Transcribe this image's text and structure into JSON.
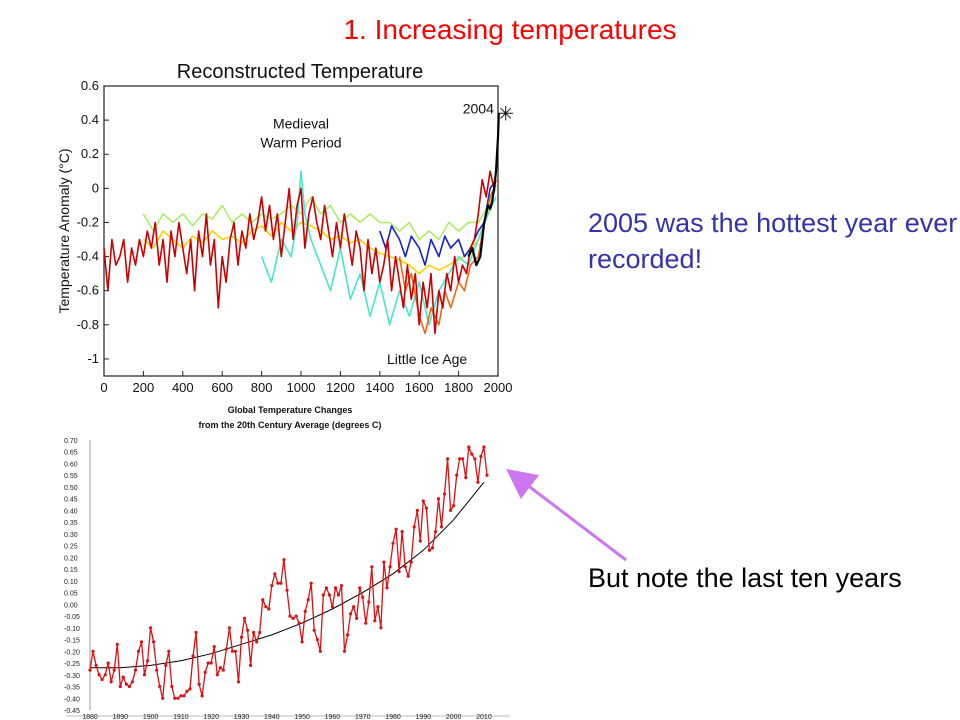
{
  "slide_title": "1. Increasing temperatures",
  "note_hottest": "2005 was the hottest year ever recorded!",
  "note_last_years": "But note the last ten years",
  "colors": {
    "title": "#ff0000",
    "note_hottest": "#3333aa",
    "arrow": "#cc77ee",
    "chart2_line": "#dd1111"
  },
  "chart_data": [
    {
      "type": "line",
      "title": "Reconstructed Temperature",
      "ylabel": "Temperature Anomaly (°C)",
      "xlabel": "",
      "xlim": [
        0,
        2000
      ],
      "ylim": [
        -1.1,
        0.6
      ],
      "x_ticks": [
        0,
        200,
        400,
        600,
        800,
        1000,
        1200,
        1400,
        1600,
        1800,
        2000
      ],
      "y_ticks": [
        0.6,
        0.4,
        0.2,
        0,
        -0.2,
        -0.4,
        -0.6,
        -0.8,
        -1
      ],
      "annotations": [
        {
          "text": "Medieval",
          "x": 1000,
          "y": 0.35
        },
        {
          "text": "Warm Period",
          "x": 1000,
          "y": 0.24
        },
        {
          "text": "Little Ice Age",
          "x": 1640,
          "y": -1.03
        },
        {
          "text": "2004",
          "x": 1900,
          "y": 0.44
        }
      ],
      "marker": {
        "label": "2004",
        "x": 2004,
        "y": 0.44
      },
      "series": [
        {
          "color": "#aaee66",
          "x": [
            200,
            250,
            300,
            350,
            400,
            450,
            500,
            550,
            600,
            650,
            700,
            750,
            800,
            850,
            900,
            950,
            1000,
            1050,
            1100,
            1150,
            1200,
            1250,
            1300,
            1350,
            1400,
            1450,
            1500,
            1550,
            1600,
            1650,
            1700,
            1750,
            1800,
            1850,
            1900,
            1950,
            1990
          ],
          "y": [
            -0.15,
            -0.25,
            -0.15,
            -0.2,
            -0.15,
            -0.22,
            -0.15,
            -0.18,
            -0.1,
            -0.2,
            -0.15,
            -0.2,
            -0.15,
            -0.18,
            -0.15,
            -0.1,
            -0.15,
            -0.05,
            -0.15,
            -0.1,
            -0.2,
            -0.15,
            -0.2,
            -0.15,
            -0.2,
            -0.2,
            -0.25,
            -0.2,
            -0.3,
            -0.25,
            -0.3,
            -0.2,
            -0.25,
            -0.2,
            -0.2,
            -0.1,
            0.0
          ]
        },
        {
          "color": "#ffd000",
          "x": [
            200,
            250,
            300,
            350,
            400,
            450,
            500,
            550,
            600,
            650,
            700,
            750,
            800,
            850,
            900,
            950,
            1000,
            1050,
            1100,
            1150,
            1200,
            1250,
            1300,
            1350,
            1400,
            1450,
            1500,
            1550,
            1600,
            1650,
            1700,
            1750,
            1800,
            1850,
            1900,
            1950,
            1990
          ],
          "y": [
            -0.3,
            -0.35,
            -0.25,
            -0.3,
            -0.35,
            -0.28,
            -0.32,
            -0.25,
            -0.3,
            -0.28,
            -0.32,
            -0.25,
            -0.22,
            -0.28,
            -0.2,
            -0.25,
            -0.2,
            -0.22,
            -0.25,
            -0.3,
            -0.28,
            -0.32,
            -0.3,
            -0.35,
            -0.38,
            -0.4,
            -0.42,
            -0.45,
            -0.5,
            -0.45,
            -0.48,
            -0.45,
            -0.42,
            -0.38,
            -0.3,
            -0.15,
            0.05
          ]
        },
        {
          "color": "#44e8cc",
          "x": [
            800,
            850,
            900,
            950,
            980,
            1000,
            1020,
            1050,
            1100,
            1150,
            1200,
            1250,
            1300,
            1350,
            1400,
            1450,
            1500,
            1550,
            1600,
            1650,
            1700,
            1750,
            1800,
            1850,
            1900,
            1950,
            1990
          ],
          "y": [
            -0.4,
            -0.55,
            -0.3,
            -0.4,
            -0.2,
            0.1,
            -0.15,
            -0.3,
            -0.45,
            -0.6,
            -0.35,
            -0.65,
            -0.5,
            -0.75,
            -0.55,
            -0.8,
            -0.6,
            -0.75,
            -0.55,
            -0.8,
            -0.6,
            -0.5,
            -0.4,
            -0.45,
            -0.3,
            -0.15,
            -0.05
          ]
        },
        {
          "color": "#1122cc",
          "x": [
            1400,
            1430,
            1460,
            1500,
            1530,
            1560,
            1600,
            1630,
            1660,
            1700,
            1730,
            1760,
            1800,
            1830,
            1860,
            1900,
            1930,
            1960,
            1990
          ],
          "y": [
            -0.25,
            -0.35,
            -0.22,
            -0.3,
            -0.4,
            -0.28,
            -0.35,
            -0.45,
            -0.3,
            -0.4,
            -0.28,
            -0.35,
            -0.3,
            -0.4,
            -0.35,
            -0.25,
            -0.2,
            0.0,
            0.05
          ]
        },
        {
          "color": "#ee6611",
          "x": [
            1500,
            1530,
            1560,
            1600,
            1630,
            1660,
            1700,
            1730,
            1760,
            1800,
            1830,
            1860,
            1900,
            1930,
            1960,
            1990
          ],
          "y": [
            -0.4,
            -0.6,
            -0.5,
            -0.75,
            -0.85,
            -0.7,
            -0.8,
            -0.6,
            -0.7,
            -0.55,
            -0.6,
            -0.45,
            -0.4,
            -0.2,
            -0.05,
            0.02
          ]
        },
        {
          "color": "#cc0000",
          "x": [
            0,
            20,
            40,
            60,
            80,
            100,
            120,
            140,
            160,
            180,
            200,
            220,
            240,
            260,
            280,
            300,
            320,
            340,
            360,
            380,
            400,
            420,
            440,
            460,
            480,
            500,
            520,
            540,
            560,
            580,
            600,
            620,
            640,
            660,
            680,
            700,
            720,
            740,
            760,
            780,
            800,
            820,
            840,
            860,
            880,
            900,
            920,
            940,
            960,
            980,
            1000,
            1020,
            1040,
            1060,
            1080,
            1100,
            1120,
            1140,
            1160,
            1180,
            1200,
            1220,
            1240,
            1260,
            1280,
            1300,
            1320,
            1340,
            1360,
            1380,
            1400,
            1420,
            1440,
            1460,
            1480,
            1500,
            1520,
            1540,
            1560,
            1580,
            1600,
            1620,
            1640,
            1660,
            1680,
            1700,
            1720,
            1740,
            1760,
            1780,
            1800,
            1820,
            1840,
            1860,
            1880,
            1900,
            1920,
            1940,
            1960,
            1980,
            1990
          ],
          "y": [
            -0.35,
            -0.6,
            -0.3,
            -0.45,
            -0.4,
            -0.3,
            -0.55,
            -0.35,
            -0.45,
            -0.3,
            -0.4,
            -0.25,
            -0.35,
            -0.2,
            -0.45,
            -0.3,
            -0.55,
            -0.25,
            -0.4,
            -0.2,
            -0.35,
            -0.5,
            -0.3,
            -0.6,
            -0.25,
            -0.4,
            -0.15,
            -0.45,
            -0.3,
            -0.7,
            -0.4,
            -0.55,
            -0.3,
            -0.2,
            -0.45,
            -0.25,
            -0.35,
            -0.15,
            -0.3,
            -0.2,
            -0.05,
            -0.25,
            -0.1,
            -0.3,
            -0.15,
            -0.4,
            -0.2,
            0.0,
            -0.3,
            -0.1,
            0.0,
            -0.35,
            -0.15,
            -0.05,
            -0.2,
            -0.3,
            -0.1,
            -0.25,
            -0.4,
            -0.2,
            -0.35,
            -0.15,
            -0.3,
            -0.45,
            -0.25,
            -0.35,
            -0.6,
            -0.3,
            -0.5,
            -0.35,
            -0.55,
            -0.45,
            -0.3,
            -0.6,
            -0.4,
            -0.55,
            -0.7,
            -0.45,
            -0.65,
            -0.5,
            -0.8,
            -0.55,
            -0.7,
            -0.5,
            -0.85,
            -0.6,
            -0.7,
            -0.5,
            -0.6,
            -0.4,
            -0.55,
            -0.45,
            -0.5,
            -0.35,
            -0.3,
            -0.15,
            0.05,
            -0.05,
            0.1,
            0.0,
            0.05
          ]
        },
        {
          "color": "#000000",
          "x": [
            1850,
            1870,
            1890,
            1910,
            1930,
            1950,
            1960,
            1970,
            1980,
            1990,
            2000,
            2004
          ],
          "y": [
            -0.4,
            -0.35,
            -0.45,
            -0.4,
            -0.2,
            -0.1,
            -0.12,
            -0.08,
            0.0,
            0.1,
            0.3,
            0.44
          ]
        }
      ]
    },
    {
      "type": "line",
      "title": "Global Temperature Changes\nfrom the 20th Century Average (degrees C)",
      "xlabel": "",
      "ylabel": "",
      "xlim": [
        1880,
        2012
      ],
      "ylim": [
        -0.45,
        0.7
      ],
      "x_ticks": [
        1880,
        1890,
        1900,
        1910,
        1920,
        1930,
        1940,
        1950,
        1960,
        1970,
        1980,
        1990,
        2000,
        2010
      ],
      "y_ticks": [
        "0.70",
        "0.65",
        "0.60",
        "0.55",
        "0.50",
        "0.45",
        "0.40",
        "0.35",
        "0.30",
        "0.25",
        "0.20",
        "0.15",
        "0.10",
        "0.05",
        "0.00",
        "-0.05",
        "-0.10",
        "-0.15",
        "-0.20",
        "-0.25",
        "-0.30",
        "-0.35",
        "-0.40",
        "-0.45"
      ],
      "series": [
        {
          "name": "annual",
          "color": "#dd1111",
          "x": [
            1880,
            1881,
            1882,
            1883,
            1884,
            1885,
            1886,
            1887,
            1888,
            1889,
            1890,
            1891,
            1892,
            1893,
            1894,
            1895,
            1896,
            1897,
            1898,
            1899,
            1900,
            1901,
            1902,
            1903,
            1904,
            1905,
            1906,
            1907,
            1908,
            1909,
            1910,
            1911,
            1912,
            1913,
            1914,
            1915,
            1916,
            1917,
            1918,
            1919,
            1920,
            1921,
            1922,
            1923,
            1924,
            1925,
            1926,
            1927,
            1928,
            1929,
            1930,
            1931,
            1932,
            1933,
            1934,
            1935,
            1936,
            1937,
            1938,
            1939,
            1940,
            1941,
            1942,
            1943,
            1944,
            1945,
            1946,
            1947,
            1948,
            1949,
            1950,
            1951,
            1952,
            1953,
            1954,
            1955,
            1956,
            1957,
            1958,
            1959,
            1960,
            1961,
            1962,
            1963,
            1964,
            1965,
            1966,
            1967,
            1968,
            1969,
            1970,
            1971,
            1972,
            1973,
            1974,
            1975,
            1976,
            1977,
            1978,
            1979,
            1980,
            1981,
            1982,
            1983,
            1984,
            1985,
            1986,
            1987,
            1988,
            1989,
            1990,
            1991,
            1992,
            1993,
            1994,
            1995,
            1996,
            1997,
            1998,
            1999,
            2000,
            2001,
            2002,
            2003,
            2004,
            2005,
            2006,
            2007,
            2008,
            2009,
            2010,
            2011
          ],
          "y": [
            -0.28,
            -0.2,
            -0.26,
            -0.3,
            -0.32,
            -0.3,
            -0.25,
            -0.33,
            -0.28,
            -0.17,
            -0.35,
            -0.31,
            -0.34,
            -0.35,
            -0.33,
            -0.28,
            -0.2,
            -0.16,
            -0.3,
            -0.24,
            -0.1,
            -0.16,
            -0.28,
            -0.35,
            -0.4,
            -0.26,
            -0.2,
            -0.35,
            -0.4,
            -0.4,
            -0.39,
            -0.39,
            -0.37,
            -0.36,
            -0.22,
            -0.12,
            -0.34,
            -0.39,
            -0.29,
            -0.25,
            -0.25,
            -0.18,
            -0.3,
            -0.27,
            -0.28,
            -0.19,
            -0.1,
            -0.2,
            -0.2,
            -0.33,
            -0.14,
            -0.06,
            -0.11,
            -0.26,
            -0.12,
            -0.16,
            -0.12,
            0.02,
            -0.01,
            -0.02,
            0.08,
            0.13,
            0.09,
            0.09,
            0.19,
            0.06,
            -0.05,
            -0.06,
            -0.05,
            -0.08,
            -0.16,
            -0.03,
            0.02,
            0.09,
            -0.11,
            -0.15,
            -0.2,
            0.04,
            0.07,
            0.04,
            -0.01,
            0.07,
            0.04,
            0.08,
            -0.2,
            -0.13,
            -0.04,
            -0.01,
            -0.06,
            0.07,
            0.03,
            -0.08,
            0.01,
            0.16,
            -0.07,
            -0.01,
            -0.1,
            0.18,
            0.07,
            0.16,
            0.26,
            0.32,
            0.14,
            0.31,
            0.16,
            0.12,
            0.18,
            0.33,
            0.4,
            0.27,
            0.44,
            0.41,
            0.23,
            0.24,
            0.31,
            0.45,
            0.33,
            0.47,
            0.62,
            0.4,
            0.42,
            0.55,
            0.62,
            0.62,
            0.54,
            0.67,
            0.64,
            0.62,
            0.52,
            0.63,
            0.67,
            0.55
          ]
        },
        {
          "name": "trend",
          "color": "#000000",
          "x": [
            1880,
            1890,
            1900,
            1910,
            1920,
            1930,
            1940,
            1950,
            1960,
            1970,
            1980,
            1990,
            2000,
            2010
          ],
          "y": [
            -0.27,
            -0.27,
            -0.26,
            -0.24,
            -0.21,
            -0.17,
            -0.13,
            -0.08,
            -0.02,
            0.05,
            0.13,
            0.23,
            0.36,
            0.52
          ]
        }
      ]
    }
  ]
}
